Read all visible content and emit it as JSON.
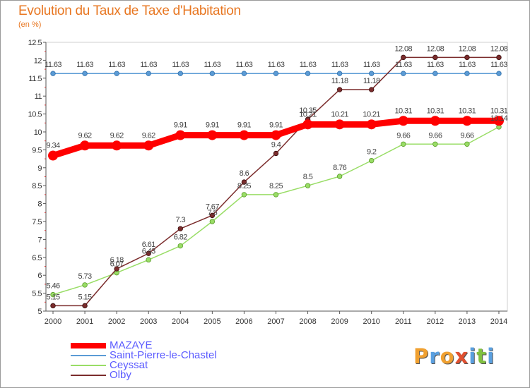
{
  "chart_data": {
    "type": "line",
    "title": "Evolution du Taux de Taxe d'Habitation",
    "subtitle": "(en %)",
    "x": [
      "2000",
      "2001",
      "2002",
      "2003",
      "2004",
      "2005",
      "2006",
      "2007",
      "2008",
      "2009",
      "2010",
      "2011",
      "2012",
      "2013",
      "2014"
    ],
    "ylim": [
      5,
      12.5
    ],
    "y_ticks": [
      "5",
      "5.5",
      "6",
      "6.5",
      "7",
      "7.5",
      "8",
      "8.5",
      "9",
      "9.5",
      "10",
      "10.5",
      "11",
      "11.5",
      "12",
      "12.5"
    ],
    "grid": false,
    "legend_position": "bottom",
    "series": [
      {
        "name": "MAZAYE",
        "color": "#ff0000",
        "values": [
          9.34,
          9.62,
          9.62,
          9.62,
          9.91,
          9.91,
          9.91,
          9.91,
          10.21,
          10.21,
          10.21,
          10.31,
          10.31,
          10.31,
          10.31
        ],
        "labels": [
          "9.34",
          "9.62",
          "9.62",
          "9.62",
          "9.91",
          "9.91",
          "9.91",
          "9.91",
          "10.21",
          "10.21",
          "10.21",
          "10.31",
          "10.31",
          "10.31",
          "10.31"
        ]
      },
      {
        "name": "Saint-Pierre-le-Chastel",
        "color": "#5b9bd5",
        "values": [
          11.63,
          11.63,
          11.63,
          11.63,
          11.63,
          11.63,
          11.63,
          11.63,
          11.63,
          11.63,
          11.63,
          11.63,
          11.63,
          11.63,
          11.63
        ],
        "labels": [
          "11.63",
          "11.63",
          "11.63",
          "11.63",
          "11.63",
          "11.63",
          "11.63",
          "11.63",
          "11.63",
          "11.63",
          "11.63",
          "11.63",
          "11.63",
          "11.63",
          "11.63"
        ]
      },
      {
        "name": "Ceyssat",
        "color": "#99dd66",
        "values": [
          5.46,
          5.73,
          6.07,
          6.43,
          6.82,
          7.5,
          8.25,
          8.25,
          8.5,
          8.76,
          9.2,
          9.66,
          9.66,
          9.66,
          10.14
        ],
        "labels": [
          "5.46",
          "5.73",
          "6.07",
          "6.43",
          "6.82",
          "7.5",
          "8.25",
          "8.25",
          "8.5",
          "8.76",
          "9.2",
          "9.66",
          "9.66",
          "9.66",
          "10.14"
        ]
      },
      {
        "name": "Olby",
        "color": "#7b2c2c",
        "values": [
          5.15,
          5.15,
          6.18,
          6.61,
          7.3,
          7.67,
          8.6,
          9.4,
          10.35,
          11.18,
          11.18,
          12.08,
          12.08,
          12.08,
          12.08
        ],
        "labels": [
          "5.15",
          "5.15",
          "6.18",
          "6.61",
          "7.3",
          "7.67",
          "8.6",
          "9.4",
          "10.35",
          "11.18",
          "11.18",
          "12.08",
          "12.08",
          "12.08",
          "12.08"
        ]
      }
    ]
  },
  "logo": {
    "letters": [
      "P",
      "r",
      "o",
      "x",
      "i",
      "t",
      "i"
    ],
    "colors": [
      "#f0a030",
      "#5aa0e0",
      "#f0a030",
      "#e05030",
      "#5aa0e0",
      "#80c040",
      "#5aa0e0"
    ]
  }
}
